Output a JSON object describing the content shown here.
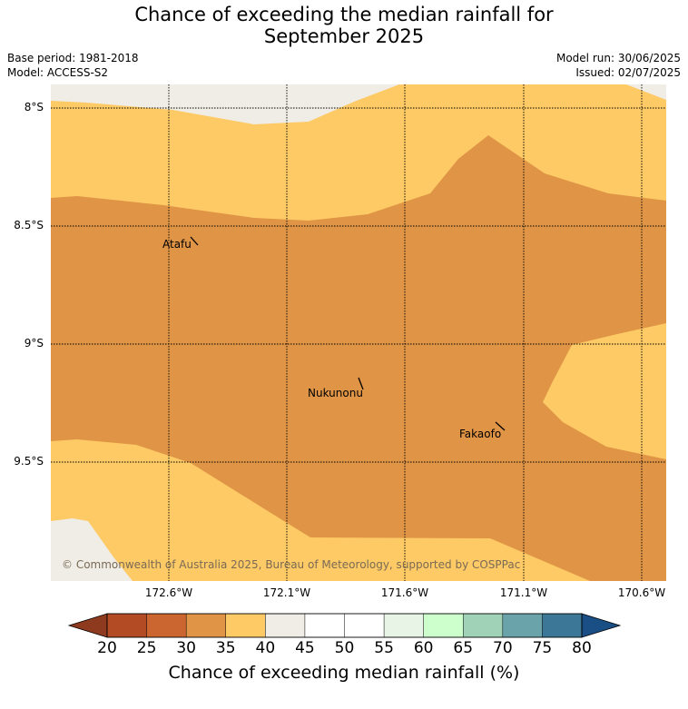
{
  "title_line1": "Chance of exceeding the median rainfall for",
  "title_line2": "September 2025",
  "base_period": "Base period: 1981-2018",
  "model": "Model: ACCESS-S2",
  "model_run": "Model run: 30/06/2025",
  "issued": "Issued: 02/07/2025",
  "copyright": "© Commonwealth of Australia 2025, Bureau of Meteorology, supported by COSPPac",
  "lat_ticks": [
    "8°S",
    "8.5°S",
    "9°S",
    "9.5°S"
  ],
  "lon_ticks": [
    "172.6°W",
    "172.1°W",
    "171.6°W",
    "171.1°W",
    "170.6°W"
  ],
  "places": [
    {
      "name": "Atafu"
    },
    {
      "name": "Nukunonu"
    },
    {
      "name": "Fakaofo"
    }
  ],
  "colorbar": {
    "title": "Chance of exceeding median rainfall (%)",
    "labels": [
      "20",
      "25",
      "30",
      "35",
      "40",
      "45",
      "50",
      "55",
      "60",
      "65",
      "70",
      "75",
      "80"
    ],
    "colors": [
      "#8e3a1e",
      "#b34b24",
      "#cc6631",
      "#e09445",
      "#fdca65",
      "#f0ece6",
      "#ffffff",
      "#ffffff",
      "#e8f5e6",
      "#ccffcc",
      "#a0d2b8",
      "#6aa4aa",
      "#3d7797",
      "#1a4f86"
    ]
  },
  "map_colors": {
    "band_30_35": "#e09445",
    "band_35_40": "#fdca65",
    "band_40_45": "#f0ece6"
  }
}
